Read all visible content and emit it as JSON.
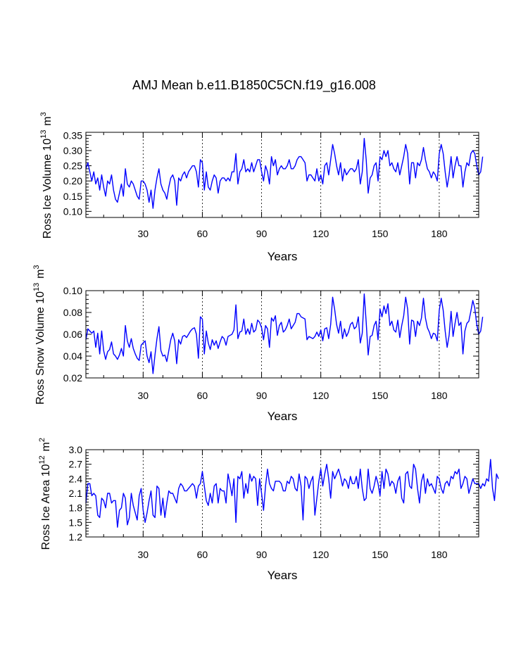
{
  "title": "AMJ Mean b.e11.B1850C5CN.f19_g16.008",
  "colors": {
    "line": "#0000ff",
    "axis": "#000000",
    "grid": "#000000",
    "background": "#ffffff"
  },
  "chart_data": [
    {
      "type": "line",
      "xlabel": "Years",
      "ylabel": {
        "main": "Ross Ice Volume 10",
        "exp": "13",
        "unit": " m",
        "unit_exp": "3"
      },
      "xlim": [
        1,
        200
      ],
      "ylim": [
        0.08,
        0.36
      ],
      "xticks": [
        30,
        60,
        90,
        120,
        150,
        180
      ],
      "xtick_labels": [
        "30",
        "60",
        "90",
        "120",
        "150",
        "180"
      ],
      "yticks": [
        0.1,
        0.15,
        0.2,
        0.25,
        0.3,
        0.35
      ],
      "ytick_labels": [
        "0.10",
        "0.15",
        "0.20",
        "0.25",
        "0.30",
        "0.35"
      ],
      "grid_x": [
        30,
        60,
        90,
        120,
        150,
        180
      ],
      "series": [
        {
          "name": "Ross Ice Volume",
          "x_start": 1,
          "values": [
            0.24,
            0.26,
            0.23,
            0.2,
            0.23,
            0.19,
            0.21,
            0.17,
            0.22,
            0.18,
            0.15,
            0.2,
            0.19,
            0.22,
            0.17,
            0.14,
            0.13,
            0.16,
            0.19,
            0.15,
            0.24,
            0.19,
            0.18,
            0.2,
            0.19,
            0.17,
            0.15,
            0.14,
            0.2,
            0.2,
            0.19,
            0.17,
            0.13,
            0.17,
            0.11,
            0.17,
            0.21,
            0.24,
            0.19,
            0.17,
            0.16,
            0.14,
            0.18,
            0.21,
            0.22,
            0.2,
            0.12,
            0.21,
            0.2,
            0.22,
            0.23,
            0.21,
            0.23,
            0.24,
            0.25,
            0.25,
            0.23,
            0.18,
            0.27,
            0.26,
            0.17,
            0.23,
            0.18,
            0.17,
            0.2,
            0.22,
            0.21,
            0.16,
            0.2,
            0.21,
            0.21,
            0.2,
            0.21,
            0.2,
            0.23,
            0.23,
            0.29,
            0.19,
            0.23,
            0.24,
            0.27,
            0.23,
            0.24,
            0.23,
            0.26,
            0.23,
            0.25,
            0.27,
            0.27,
            0.23,
            0.2,
            0.25,
            0.23,
            0.19,
            0.28,
            0.25,
            0.27,
            0.22,
            0.24,
            0.25,
            0.24,
            0.24,
            0.25,
            0.27,
            0.24,
            0.24,
            0.25,
            0.27,
            0.28,
            0.28,
            0.27,
            0.26,
            0.2,
            0.22,
            0.22,
            0.21,
            0.2,
            0.24,
            0.2,
            0.22,
            0.19,
            0.25,
            0.26,
            0.22,
            0.27,
            0.32,
            0.29,
            0.25,
            0.22,
            0.26,
            0.2,
            0.24,
            0.22,
            0.23,
            0.24,
            0.24,
            0.23,
            0.24,
            0.27,
            0.19,
            0.23,
            0.34,
            0.27,
            0.16,
            0.21,
            0.22,
            0.25,
            0.26,
            0.2,
            0.28,
            0.27,
            0.3,
            0.28,
            0.3,
            0.25,
            0.26,
            0.24,
            0.23,
            0.26,
            0.22,
            0.25,
            0.28,
            0.32,
            0.29,
            0.19,
            0.26,
            0.26,
            0.21,
            0.26,
            0.25,
            0.27,
            0.31,
            0.27,
            0.24,
            0.23,
            0.21,
            0.23,
            0.22,
            0.2,
            0.29,
            0.32,
            0.29,
            0.23,
            0.18,
            0.22,
            0.28,
            0.21,
            0.25,
            0.28,
            0.25,
            0.25,
            0.18,
            0.23,
            0.26,
            0.25,
            0.29,
            0.3,
            0.29,
            0.25,
            0.22,
            0.23,
            0.28
          ]
        }
      ]
    },
    {
      "type": "line",
      "xlabel": "Years",
      "ylabel": {
        "main": "Ross Snow Volume 10",
        "exp": "13",
        "unit": " m",
        "unit_exp": "3"
      },
      "xlim": [
        1,
        200
      ],
      "ylim": [
        0.02,
        0.1
      ],
      "xticks": [
        30,
        60,
        90,
        120,
        150,
        180
      ],
      "xtick_labels": [
        "30",
        "60",
        "90",
        "120",
        "150",
        "180"
      ],
      "yticks": [
        0.02,
        0.04,
        0.06,
        0.08,
        0.1
      ],
      "ytick_labels": [
        "0.02",
        "0.04",
        "0.06",
        "0.08",
        "0.10"
      ],
      "grid_x": [
        30,
        60,
        90,
        120,
        150,
        180
      ],
      "series": [
        {
          "name": "Ross Snow Volume",
          "x_start": 1,
          "values": [
            0.055,
            0.065,
            0.063,
            0.061,
            0.063,
            0.048,
            0.061,
            0.042,
            0.063,
            0.045,
            0.037,
            0.044,
            0.046,
            0.053,
            0.042,
            0.04,
            0.037,
            0.041,
            0.047,
            0.04,
            0.068,
            0.054,
            0.048,
            0.056,
            0.047,
            0.042,
            0.038,
            0.036,
            0.05,
            0.052,
            0.054,
            0.04,
            0.034,
            0.044,
            0.024,
            0.041,
            0.056,
            0.067,
            0.045,
            0.04,
            0.041,
            0.035,
            0.045,
            0.055,
            0.061,
            0.054,
            0.033,
            0.055,
            0.051,
            0.058,
            0.059,
            0.057,
            0.06,
            0.063,
            0.065,
            0.066,
            0.06,
            0.038,
            0.076,
            0.074,
            0.042,
            0.063,
            0.052,
            0.046,
            0.055,
            0.05,
            0.054,
            0.047,
            0.053,
            0.058,
            0.056,
            0.05,
            0.058,
            0.059,
            0.06,
            0.064,
            0.087,
            0.056,
            0.062,
            0.063,
            0.074,
            0.06,
            0.065,
            0.06,
            0.07,
            0.062,
            0.064,
            0.073,
            0.071,
            0.066,
            0.055,
            0.068,
            0.065,
            0.048,
            0.075,
            0.072,
            0.077,
            0.059,
            0.068,
            0.071,
            0.062,
            0.064,
            0.068,
            0.074,
            0.065,
            0.068,
            0.071,
            0.079,
            0.079,
            0.076,
            0.075,
            0.074,
            0.055,
            0.058,
            0.057,
            0.056,
            0.058,
            0.062,
            0.058,
            0.064,
            0.054,
            0.065,
            0.066,
            0.056,
            0.069,
            0.094,
            0.083,
            0.069,
            0.061,
            0.072,
            0.056,
            0.065,
            0.058,
            0.062,
            0.069,
            0.071,
            0.065,
            0.067,
            0.076,
            0.052,
            0.061,
            0.097,
            0.071,
            0.041,
            0.058,
            0.059,
            0.068,
            0.072,
            0.055,
            0.083,
            0.076,
            0.086,
            0.079,
            0.088,
            0.068,
            0.072,
            0.064,
            0.062,
            0.073,
            0.057,
            0.068,
            0.077,
            0.094,
            0.083,
            0.051,
            0.073,
            0.072,
            0.058,
            0.072,
            0.068,
            0.075,
            0.093,
            0.075,
            0.066,
            0.062,
            0.056,
            0.061,
            0.06,
            0.054,
            0.082,
            0.093,
            0.082,
            0.063,
            0.048,
            0.059,
            0.081,
            0.058,
            0.07,
            0.08,
            0.068,
            0.071,
            0.042,
            0.063,
            0.07,
            0.072,
            0.081,
            0.091,
            0.084,
            0.069,
            0.06,
            0.063,
            0.076
          ]
        }
      ]
    },
    {
      "type": "line",
      "xlabel": "Years",
      "ylabel": {
        "main": "Ross Ice Area 10",
        "exp": "12",
        "unit": " m",
        "unit_exp": "2"
      },
      "xlim": [
        1,
        200
      ],
      "ylim": [
        1.2,
        3.0
      ],
      "xticks": [
        30,
        60,
        90,
        120,
        150,
        180
      ],
      "xtick_labels": [
        "30",
        "60",
        "90",
        "120",
        "150",
        "180"
      ],
      "yticks": [
        1.2,
        1.5,
        1.8,
        2.1,
        2.4,
        2.7,
        3.0
      ],
      "ytick_labels": [
        "1.2",
        "1.5",
        "1.8",
        "2.1",
        "2.4",
        "2.7",
        "3.0"
      ],
      "grid_x": [
        30,
        60,
        90,
        120,
        150,
        180
      ],
      "series": [
        {
          "name": "Ross Ice Area",
          "x_start": 1,
          "values": [
            1.9,
            2.3,
            2.3,
            2.05,
            2.1,
            2.05,
            1.65,
            1.6,
            2.0,
            1.95,
            1.8,
            2.1,
            2.1,
            1.9,
            1.95,
            1.95,
            1.4,
            1.75,
            1.8,
            2.1,
            2.0,
            1.45,
            1.6,
            2.1,
            1.85,
            1.7,
            1.55,
            2.05,
            2.2,
            1.75,
            1.5,
            1.7,
            1.95,
            2.15,
            1.65,
            1.6,
            2.25,
            2.2,
            1.65,
            2.0,
            1.6,
            1.9,
            2.15,
            2.1,
            2.1,
            2.0,
            1.9,
            2.2,
            2.3,
            2.25,
            2.15,
            2.15,
            2.2,
            2.25,
            2.3,
            2.25,
            2.0,
            2.25,
            2.3,
            2.55,
            2.25,
            1.95,
            1.85,
            2.1,
            1.9,
            2.25,
            2.3,
            1.9,
            2.2,
            2.15,
            2.15,
            1.9,
            2.5,
            2.3,
            2.05,
            2.4,
            1.5,
            2.45,
            2.4,
            2.55,
            2.0,
            2.3,
            2.1,
            2.5,
            2.35,
            2.45,
            2.4,
            1.85,
            2.4,
            2.1,
            1.75,
            2.25,
            2.6,
            2.3,
            2.2,
            2.15,
            2.35,
            2.35,
            2.35,
            2.3,
            2.15,
            2.15,
            2.35,
            2.3,
            2.45,
            2.4,
            2.2,
            2.15,
            2.5,
            2.25,
            1.55,
            2.45,
            2.4,
            2.2,
            2.35,
            2.45,
            1.65,
            2.0,
            2.35,
            2.6,
            2.25,
            2.5,
            2.7,
            2.4,
            2.0,
            2.55,
            2.4,
            2.5,
            2.6,
            2.45,
            2.25,
            2.4,
            2.35,
            2.2,
            2.45,
            2.3,
            2.3,
            2.45,
            2.2,
            2.6,
            2.2,
            1.95,
            2.0,
            2.6,
            2.2,
            2.1,
            2.25,
            2.45,
            2.3,
            2.05,
            2.55,
            2.2,
            2.6,
            2.5,
            2.25,
            2.35,
            2.3,
            2.1,
            2.35,
            2.45,
            2.0,
            1.9,
            2.5,
            2.55,
            2.25,
            2.2,
            2.7,
            2.6,
            2.2,
            1.9,
            2.35,
            2.5,
            2.1,
            2.4,
            2.25,
            2.3,
            2.2,
            2.1,
            2.45,
            2.4,
            2.2,
            2.1,
            2.3,
            2.35,
            2.25,
            2.45,
            2.4,
            2.55,
            2.5,
            2.6,
            2.2,
            2.3,
            2.45,
            2.4,
            2.1,
            2.25,
            2.4,
            2.3,
            2.3,
            2.3,
            2.2,
            2.3,
            2.25,
            2.4,
            2.35,
            2.8,
            2.2,
            1.95,
            2.5,
            2.4
          ]
        }
      ]
    }
  ]
}
